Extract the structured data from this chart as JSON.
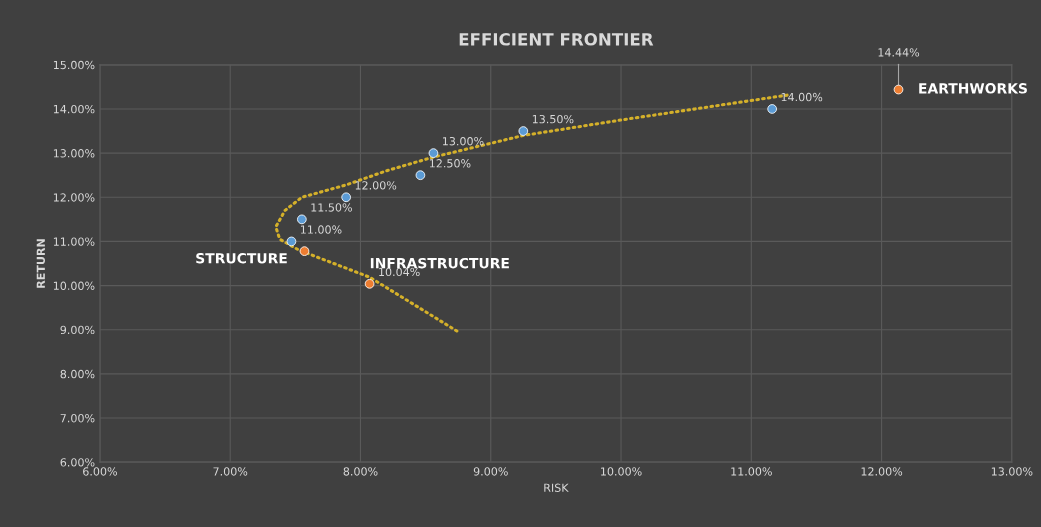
{
  "chart_data": {
    "type": "scatter",
    "title": "EFFICIENT FRONTIER",
    "xlabel": "RISK",
    "ylabel": "RETURN",
    "xlim": [
      6,
      13
    ],
    "ylim": [
      6,
      15
    ],
    "xticks": [
      {
        "value": 6,
        "label": "6.00%"
      },
      {
        "value": 7,
        "label": "7.00%"
      },
      {
        "value": 8,
        "label": "8.00%"
      },
      {
        "value": 9,
        "label": "9.00%"
      },
      {
        "value": 10,
        "label": "10.00%"
      },
      {
        "value": 11,
        "label": "11.00%"
      },
      {
        "value": 12,
        "label": "12.00%"
      },
      {
        "value": 13,
        "label": "13.00%"
      }
    ],
    "yticks": [
      {
        "value": 6,
        "label": "6.00%"
      },
      {
        "value": 7,
        "label": "7.00%"
      },
      {
        "value": 8,
        "label": "8.00%"
      },
      {
        "value": 9,
        "label": "9.00%"
      },
      {
        "value": 10,
        "label": "10.00%"
      },
      {
        "value": 11,
        "label": "11.00%"
      },
      {
        "value": 12,
        "label": "12.00%"
      },
      {
        "value": 13,
        "label": "13.00%"
      },
      {
        "value": 14,
        "label": "14.00%"
      },
      {
        "value": 15,
        "label": "15.00%"
      }
    ],
    "grid": true,
    "marker": "circle",
    "series": [
      {
        "type": "line",
        "color": "#d4b02a",
        "line_style": "dotted",
        "marker": "none",
        "x": [
          8.74,
          8.07,
          7.53,
          7.38,
          7.35,
          7.42,
          7.55,
          7.89,
          8.2,
          8.56,
          9.25,
          10.0,
          11.29
        ],
        "values": [
          8.97,
          10.19,
          10.8,
          11.05,
          11.33,
          11.7,
          12.0,
          12.28,
          12.6,
          12.91,
          13.4,
          13.75,
          14.32
        ]
      },
      {
        "color": "#5b9bd5",
        "x": [
          7.47,
          7.55,
          7.89,
          8.46,
          8.56,
          9.25,
          11.16
        ],
        "values": [
          11.0,
          11.5,
          12.0,
          12.5,
          13.0,
          13.5,
          14.0
        ],
        "value_labels": [
          "11.00%",
          "11.50%",
          "12.00%",
          "12.50%",
          "13.00%",
          "13.50%",
          "14.00%"
        ]
      },
      {
        "color": "#ed7d31",
        "x": [
          7.57,
          8.07,
          12.13
        ],
        "values": [
          10.78,
          10.04,
          14.44
        ],
        "value_labels": [
          null,
          "10.04%",
          "14.44%"
        ]
      }
    ],
    "annotations": [
      {
        "text": "STRUCTURE",
        "x": 7.57,
        "y": 10.78
      },
      {
        "text": "INFRASTRUCTURE",
        "x": 8.07,
        "y": 10.04
      },
      {
        "text": "EARTHWORKS",
        "x": 12.13,
        "y": 14.44
      }
    ]
  }
}
